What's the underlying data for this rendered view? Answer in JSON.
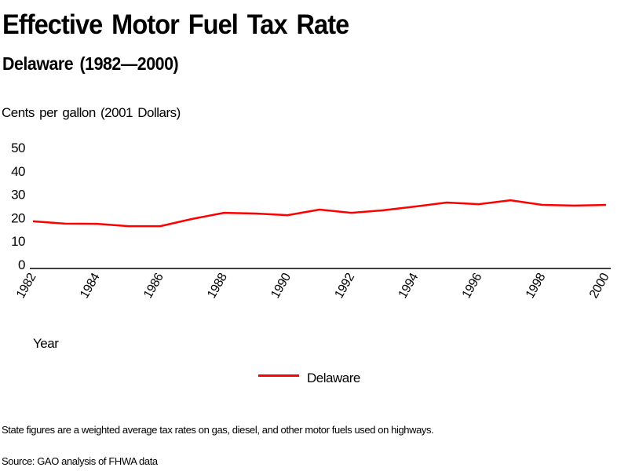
{
  "chart_data": {
    "type": "line",
    "title": "Effective Motor Fuel Tax Rate",
    "subtitle": "Delaware (1982—2000)",
    "ylabel": "Cents per gallon (2001 Dollars)",
    "xlabel": "Year",
    "ylim": [
      0,
      50
    ],
    "yticks": [
      0,
      10,
      20,
      30,
      40,
      50
    ],
    "xlim": [
      1982,
      2000
    ],
    "xticks": [
      1982,
      1984,
      1986,
      1988,
      1990,
      1992,
      1994,
      1996,
      1998,
      2000
    ],
    "x": [
      1982,
      1983,
      1984,
      1985,
      1986,
      1987,
      1988,
      1989,
      1990,
      1991,
      1992,
      1993,
      1994,
      1995,
      1996,
      1997,
      1998,
      1999,
      2000
    ],
    "series": [
      {
        "name": "Delaware",
        "color": "#ff0000",
        "values": [
          18.5,
          17.5,
          17.4,
          16.4,
          16.4,
          19.5,
          22.1,
          21.8,
          21.1,
          23.5,
          22.1,
          23.2,
          24.8,
          26.5,
          25.8,
          27.5,
          25.5,
          25.2,
          25.5
        ]
      }
    ],
    "grid": false,
    "legend": "bottom-center"
  },
  "footnotes": {
    "note": "State figures are a weighted average tax rates on gas, diesel, and other motor fuels used on highways.",
    "source": "Source: GAO analysis of FHWA data"
  }
}
